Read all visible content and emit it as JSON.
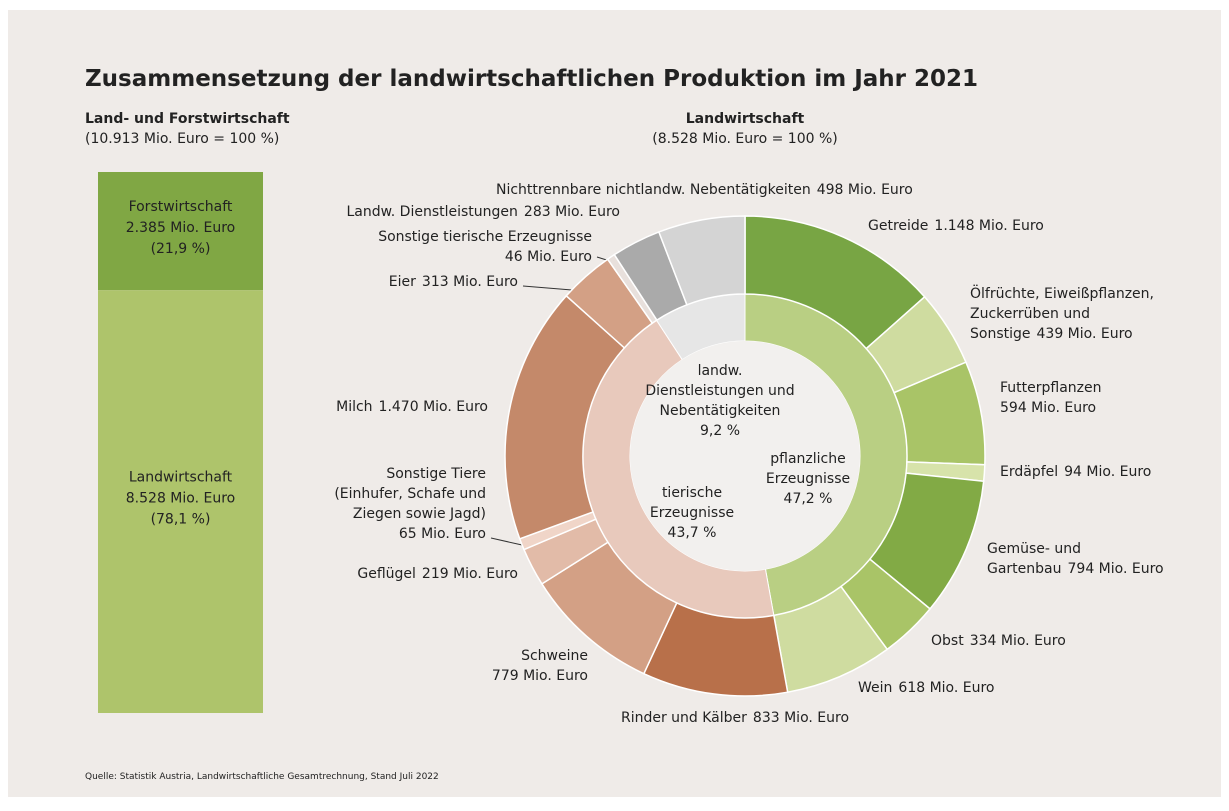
{
  "title": "Zusammensetzung der landwirtschaftlichen Produktion im Jahr 2021",
  "source": "Quelle: Statistik Austria, Landwirtschaftliche Gesamtrechnung, Stand Juli 2022",
  "chart_data": [
    {
      "type": "stacked_bar",
      "title": "Land- und Forstwirtschaft",
      "subtitle": "(10.913 Mio. Euro = 100 %)",
      "series": [
        {
          "name": "Forstwirtschaft",
          "color": "#80a744",
          "values": [
            2385
          ],
          "value_labels": [
            "2.385 Mio. Euro"
          ],
          "percents": [
            21.9
          ],
          "percent_labels": [
            "(21,9 %)"
          ]
        },
        {
          "name": "Landwirtschaft",
          "color": "#aec46b",
          "values": [
            8528
          ],
          "value_labels": [
            "8.528 Mio. Euro"
          ],
          "percents": [
            78.1
          ],
          "percent_labels": [
            "(78,1 %)"
          ]
        }
      ]
    },
    {
      "type": "sunburst",
      "title": "Landwirtschaft",
      "subtitle": "(8.528 Mio. Euro = 100 %)",
      "groups": [
        {
          "name": [
            "pflanzliche",
            "Erzeugnisse"
          ],
          "color": "#b9cf83",
          "percent": 47.2,
          "percent_label": "47,2 %",
          "segments": [
            {
              "name": [
                "Getreide"
              ],
              "color": "#78a544",
              "value": 1148,
              "value_label": "1.148 Mio. Euro"
            },
            {
              "name": [
                "Ölfrüchte, Eiweißpflanzen,",
                "Zuckerrüben und",
                "Sonstige"
              ],
              "color": "#cfdca0",
              "value": 439,
              "value_label": "439 Mio. Euro"
            },
            {
              "name": [
                "Futterpflanzen"
              ],
              "color": "#a9c467",
              "value": 594,
              "value_label": "594 Mio. Euro"
            },
            {
              "name": [
                "Erdäpfel"
              ],
              "color": "#d7e3aa",
              "value": 94,
              "value_label": "94 Mio. Euro"
            },
            {
              "name": [
                "Gemüse- und",
                "Gartenbau"
              ],
              "color": "#82aa45",
              "value": 794,
              "value_label": "794 Mio. Euro"
            },
            {
              "name": [
                "Obst"
              ],
              "color": "#a9c467",
              "value": 334,
              "value_label": "334 Mio. Euro"
            },
            {
              "name": [
                "Wein"
              ],
              "color": "#cfdca0",
              "value": 618,
              "value_label": "618 Mio. Euro"
            }
          ]
        },
        {
          "name": [
            "tierische",
            "Erzeugnisse"
          ],
          "color": "#e8c9bc",
          "percent": 43.7,
          "percent_label": "43,7 %",
          "segments": [
            {
              "name": [
                "Rinder und Kälber"
              ],
              "color": "#b8704a",
              "value": 833,
              "value_label": "833 Mio. Euro"
            },
            {
              "name": [
                "Schweine"
              ],
              "color": "#d3a085",
              "value": 779,
              "value_label": "779 Mio. Euro"
            },
            {
              "name": [
                "Geflügel"
              ],
              "color": "#e2bba8",
              "value": 219,
              "value_label": "219 Mio. Euro"
            },
            {
              "name": [
                "Sonstige Tiere",
                "(Einhufer, Schafe und",
                "Ziegen sowie Jagd)"
              ],
              "color": "#f0d5c8",
              "value": 65,
              "value_label": "65 Mio. Euro"
            },
            {
              "name": [
                "Milch"
              ],
              "color": "#c4896a",
              "value": 1470,
              "value_label": "1.470 Mio. Euro"
            },
            {
              "name": [
                "Eier"
              ],
              "color": "#d3a085",
              "value": 313,
              "value_label": "313 Mio. Euro"
            },
            {
              "name": [
                "Sonstige tierische Erzeugnisse"
              ],
              "color": "#e8e0dc",
              "value": 46,
              "value_label": "46 Mio. Euro"
            }
          ]
        },
        {
          "name": [
            "landw.",
            "Dienstleistungen und",
            "Nebentätigkeiten"
          ],
          "color": "#e6e6e6",
          "percent": 9.2,
          "percent_label": "9,2 %",
          "segments": [
            {
              "name": [
                "Landw. Dienstleistungen"
              ],
              "color": "#aaaaaa",
              "value": 283,
              "value_label": "283 Mio. Euro"
            },
            {
              "name": [
                "Nichttrennbare nichtlandw. Nebentätigkeiten"
              ],
              "color": "#d4d4d4",
              "value": 498,
              "value_label": "498 Mio. Euro"
            }
          ]
        }
      ]
    }
  ]
}
